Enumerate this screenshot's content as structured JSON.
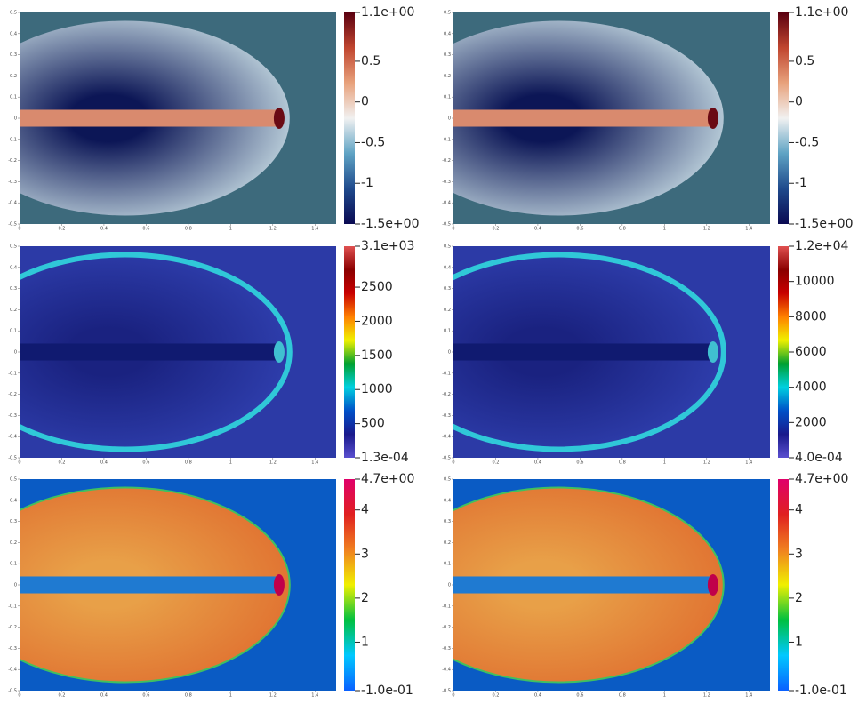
{
  "chart_data": [
    {
      "type": "heatmap",
      "xlim": [
        0,
        1.5
      ],
      "ylim": [
        -0.5,
        0.5
      ],
      "xticks": [
        0,
        0.2,
        0.4,
        0.6,
        0.8,
        1,
        1.2,
        1.4
      ],
      "yticks": [
        -0.5,
        -0.4,
        -0.3,
        -0.2,
        -0.1,
        0,
        0.1,
        0.2,
        0.3,
        0.4,
        0.5
      ],
      "colorbar": {
        "lim": [
          -1.5,
          1.1
        ],
        "ticks": [
          {
            "value": -1.5,
            "label": "-1.5e+00"
          },
          -1,
          -0.5,
          0,
          0.5,
          {
            "value": 1.1,
            "label": "1.1e+00"
          }
        ],
        "colors": [
          "#0a0a52",
          "#1f4a8c",
          "#5fa3c4",
          "#f1f1f1",
          "#e8a27c",
          "#c0452f",
          "#5a0010"
        ]
      }
    },
    {
      "type": "heatmap",
      "xlim": [
        0,
        1.5
      ],
      "ylim": [
        -0.5,
        0.5
      ],
      "xticks": [
        0,
        0.2,
        0.4,
        0.6,
        0.8,
        1,
        1.2,
        1.4
      ],
      "yticks": [
        -0.5,
        -0.4,
        -0.3,
        -0.2,
        -0.1,
        0,
        0.1,
        0.2,
        0.3,
        0.4,
        0.5
      ],
      "colorbar": {
        "lim": [
          -1.5,
          1.1
        ],
        "ticks": [
          {
            "value": -1.5,
            "label": "-1.5e+00"
          },
          -1,
          -0.5,
          0,
          0.5,
          {
            "value": 1.1,
            "label": "1.1e+00"
          }
        ],
        "colors": [
          "#0a0a52",
          "#1f4a8c",
          "#5fa3c4",
          "#f1f1f1",
          "#e8a27c",
          "#c0452f",
          "#5a0010"
        ]
      }
    },
    {
      "type": "heatmap",
      "xlim": [
        0,
        1.5
      ],
      "ylim": [
        -0.5,
        0.5
      ],
      "xticks": [
        0,
        0.2,
        0.4,
        0.6,
        0.8,
        1,
        1.2,
        1.4
      ],
      "yticks": [
        -0.5,
        -0.4,
        -0.3,
        -0.2,
        -0.1,
        0,
        0.1,
        0.2,
        0.3,
        0.4,
        0.5
      ],
      "colorbar": {
        "lim": [
          0.00013,
          3100
        ],
        "ticks": [
          {
            "value": 0.00013,
            "label": "1.3e-04"
          },
          500,
          1000,
          1500,
          2000,
          2500,
          {
            "value": 3100,
            "label": "3.1e+03"
          }
        ],
        "colors": [
          "#5a4fcf",
          "#1a1a8c",
          "#0050c8",
          "#00d0e0",
          "#00a030",
          "#f0f000",
          "#ff8000",
          "#c80000",
          "#8a0000",
          "#e05050"
        ]
      }
    },
    {
      "type": "heatmap",
      "xlim": [
        0,
        1.5
      ],
      "ylim": [
        -0.5,
        0.5
      ],
      "xticks": [
        0,
        0.2,
        0.4,
        0.6,
        0.8,
        1,
        1.2,
        1.4
      ],
      "yticks": [
        -0.5,
        -0.4,
        -0.3,
        -0.2,
        -0.1,
        0,
        0.1,
        0.2,
        0.3,
        0.4,
        0.5
      ],
      "colorbar": {
        "lim": [
          0.0004,
          12000
        ],
        "ticks": [
          {
            "value": 0.0004,
            "label": "4.0e-04"
          },
          2000,
          4000,
          6000,
          8000,
          10000,
          {
            "value": 12000,
            "label": "1.2e+04"
          }
        ],
        "colors": [
          "#5a4fcf",
          "#1a1a8c",
          "#0050c8",
          "#00d0e0",
          "#00a030",
          "#f0f000",
          "#ff8000",
          "#c80000",
          "#8a0000",
          "#e05050"
        ]
      }
    },
    {
      "type": "heatmap",
      "xlim": [
        0,
        1.5
      ],
      "ylim": [
        -0.5,
        0.5
      ],
      "xticks": [
        0,
        0.2,
        0.4,
        0.6,
        0.8,
        1,
        1.2,
        1.4
      ],
      "yticks": [
        -0.5,
        -0.4,
        -0.3,
        -0.2,
        -0.1,
        0,
        0.1,
        0.2,
        0.3,
        0.4,
        0.5
      ],
      "colorbar": {
        "lim": [
          -0.1,
          4.7
        ],
        "ticks": [
          {
            "value": -0.1,
            "label": "-1.0e-01"
          },
          1,
          2,
          3,
          4,
          {
            "value": 4.7,
            "label": "4.7e+00"
          }
        ],
        "colors": [
          "#0a60ff",
          "#00c8ff",
          "#00c040",
          "#f0f000",
          "#f08020",
          "#e02020",
          "#e0006a"
        ]
      }
    },
    {
      "type": "heatmap",
      "xlim": [
        0,
        1.5
      ],
      "ylim": [
        -0.5,
        0.5
      ],
      "xticks": [
        0,
        0.2,
        0.4,
        0.6,
        0.8,
        1,
        1.2,
        1.4
      ],
      "yticks": [
        -0.5,
        -0.4,
        -0.3,
        -0.2,
        -0.1,
        0,
        0.1,
        0.2,
        0.3,
        0.4,
        0.5
      ],
      "colorbar": {
        "lim": [
          -0.1,
          4.7
        ],
        "ticks": [
          {
            "value": -0.1,
            "label": "-1.0e-01"
          },
          1,
          2,
          3,
          4,
          {
            "value": 4.7,
            "label": "4.7e+00"
          }
        ],
        "colors": [
          "#0a60ff",
          "#00c8ff",
          "#00c040",
          "#f0f000",
          "#f08020",
          "#e02020",
          "#e0006a"
        ]
      }
    }
  ]
}
